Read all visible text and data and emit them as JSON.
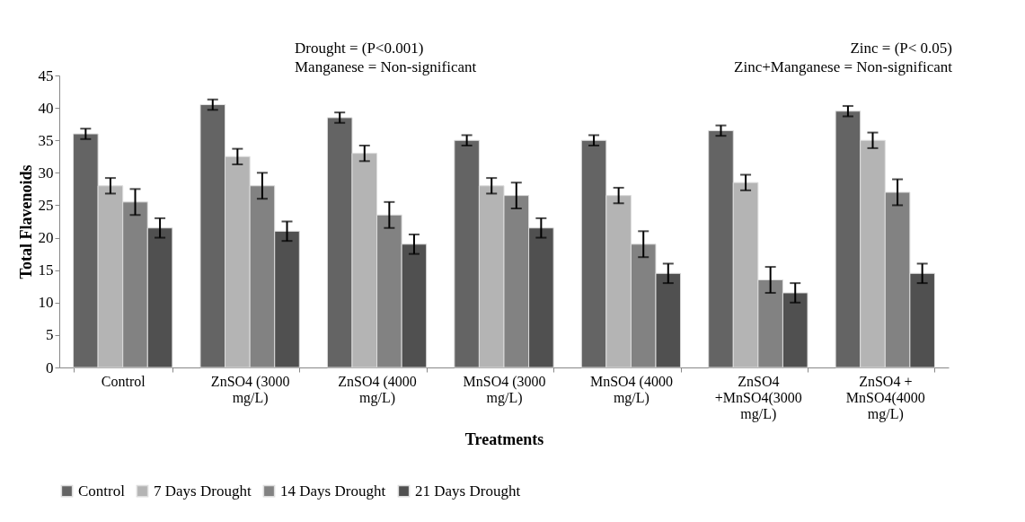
{
  "chart_data": {
    "type": "bar",
    "xlabel": "Treatments",
    "ylabel": "Total Flavenoids",
    "categories": [
      "Control",
      "ZnSO4 (3000 mg/L)",
      "ZnSO4 (4000 mg/L)",
      "MnSO4 (3000 mg/L)",
      "MnSO4 (4000 mg/L)",
      "ZnSO4 +MnSO4(3000 mg/L)",
      "ZnSO4 + MnSO4(4000 mg/L)"
    ],
    "series": [
      {
        "name": "Control",
        "color": "#646464",
        "values": [
          36,
          40.5,
          38.5,
          35,
          35,
          36.5,
          39.5
        ],
        "errors": [
          0.8,
          0.8,
          0.8,
          0.8,
          0.8,
          0.8,
          0.8
        ]
      },
      {
        "name": "7 Days Drought",
        "color": "#b4b4b4",
        "values": [
          28,
          32.5,
          33,
          28,
          26.5,
          28.5,
          35
        ],
        "errors": [
          1.2,
          1.2,
          1.2,
          1.2,
          1.2,
          1.2,
          1.2
        ]
      },
      {
        "name": "14 Days Drought",
        "color": "#828282",
        "values": [
          25.5,
          28,
          23.5,
          26.5,
          19,
          13.5,
          27
        ],
        "errors": [
          2,
          2,
          2,
          2,
          2,
          2,
          2
        ]
      },
      {
        "name": "21 Days Drought",
        "color": "#505050",
        "values": [
          21.5,
          21,
          19,
          21.5,
          14.5,
          11.5,
          14.5
        ],
        "errors": [
          1.5,
          1.5,
          1.5,
          1.5,
          1.5,
          1.5,
          1.5
        ]
      }
    ],
    "ylim": [
      0,
      45
    ],
    "yticks": [
      0,
      5,
      10,
      15,
      20,
      25,
      30,
      35,
      40,
      45
    ],
    "grid": false,
    "legend": "bottom",
    "annotations": [
      "Drought = (P<0.001)",
      "Manganese = Non-significant",
      "Zinc = (P< 0.05)",
      "Zinc+Manganese = Non-significant"
    ]
  }
}
